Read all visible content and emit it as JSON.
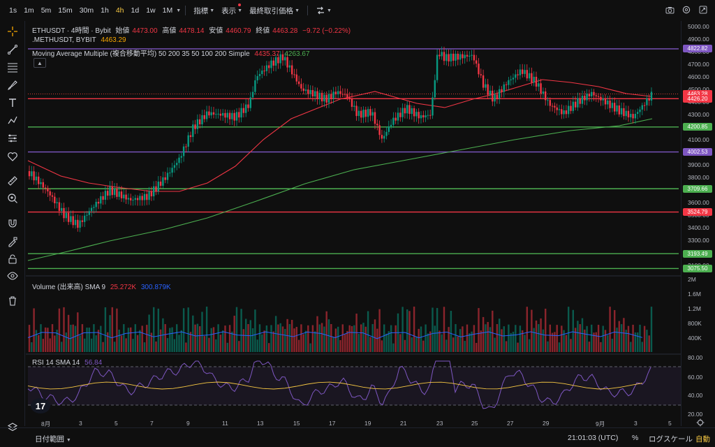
{
  "toolbar": {
    "timeframes": [
      "1s",
      "1m",
      "5m",
      "15m",
      "30m",
      "1h",
      "4h",
      "1d",
      "1w",
      "1M"
    ],
    "active_timeframe": "4h",
    "indicators": "指標",
    "display": "表示",
    "last_price_mode": "最終取引価格"
  },
  "legend": {
    "symbol": "ETHUSDT · 4時間 · Bybit",
    "open_label": "始値",
    "open": "4473.00",
    "high_label": "高値",
    "high": "4478.14",
    "low_label": "安値",
    "low": "4460.79",
    "close_label": "終値",
    "close": "4463.28",
    "change": "−9.72 (−0.22%)",
    "secondary_symbol": ".METHUSDT, BYBIT",
    "secondary_value": "4463.29",
    "ma_name": "Moving Average Multiple (複合移動平均) 50 200 35 50 100 200 Simple",
    "ma_value1": "4435.37",
    "ma_value2": "4263.67",
    "volume_name": "Volume (出来高) SMA 9",
    "volume_value1": "25.272K",
    "volume_value2": "300.879K",
    "rsi_name": "RSI 14 SMA 14",
    "rsi_value": "56.84"
  },
  "price_axis": {
    "ticks": [
      "5000.00",
      "4900.00",
      "4800.00",
      "4700.00",
      "4600.00",
      "4500.00",
      "4400.00",
      "4300.00",
      "4200.00",
      "4100.00",
      "4000.00",
      "3900.00",
      "3800.00",
      "3700.00",
      "3600.00",
      "3500.00",
      "3400.00",
      "3300.00",
      "3200.00",
      "3100.00"
    ],
    "tags": [
      {
        "text": "4822.82",
        "color": "#7e57c2"
      },
      {
        "text": "4463.29",
        "color": "#f7a600"
      },
      {
        "text": "4463.28",
        "color": "#f23645"
      },
      {
        "text": "4426.20",
        "color": "#f23645"
      },
      {
        "text": "4200.85",
        "color": "#4caf50"
      },
      {
        "text": "4002.53",
        "color": "#7e57c2"
      },
      {
        "text": "3709.66",
        "color": "#4caf50"
      },
      {
        "text": "3524.79",
        "color": "#f23645"
      },
      {
        "text": "3193.49",
        "color": "#4caf50"
      },
      {
        "text": "3075.50",
        "color": "#4caf50"
      }
    ],
    "volume_ticks": [
      "2M",
      "1.6M",
      "1.2M",
      "800K",
      "400K"
    ],
    "rsi_ticks": [
      "80.00",
      "60.00",
      "40.00",
      "20.00"
    ]
  },
  "x_axis": {
    "labels": [
      "8月",
      "3",
      "5",
      "7",
      "9",
      "11",
      "13",
      "15",
      "17",
      "19",
      "21",
      "23",
      "25",
      "27",
      "29",
      "9月",
      "3",
      "5"
    ]
  },
  "bottom": {
    "date_range": "日付範囲",
    "time": "21:01:03 (UTC)",
    "percent": "%",
    "log_scale": "ログスケール",
    "auto": "自動"
  },
  "colors": {
    "up": "#089981",
    "down": "#f23645",
    "purple_line": "#7e57c2",
    "green_line": "#4caf50",
    "red_line": "#f23645",
    "ma_slow": "#4caf50",
    "ma_fast": "#f23645",
    "rsi": "#7e57c2"
  },
  "icons": [
    "crosshair-icon",
    "trendline-icon",
    "fib-icon",
    "brush-icon",
    "text-icon",
    "pattern-icon",
    "prediction-icon",
    "heart-icon",
    "ruler-icon",
    "zoom-in-icon",
    "magnet-icon",
    "lock-drawing-icon",
    "lock-icon",
    "eye-icon",
    "trash-icon",
    "layers-icon",
    "camera-icon",
    "settings-icon",
    "fullscreen-icon"
  ]
}
